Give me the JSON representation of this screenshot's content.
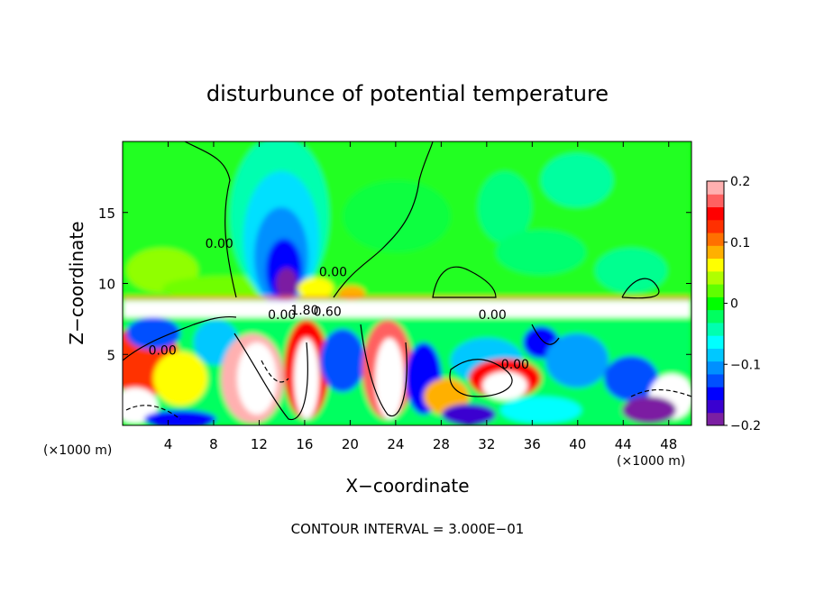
{
  "chart_data": {
    "type": "heatmap",
    "title": "disturbunce of potential temperature",
    "xlabel": "X−coordinate",
    "ylabel": "Z−coordinate",
    "x_unit_label": "(×1000 m)",
    "x_unit_label_right": "(×1000 m)",
    "footer": "CONTOUR INTERVAL = 3.000E−01",
    "xlim": [
      0,
      50
    ],
    "ylim": [
      0,
      20
    ],
    "x_ticks": [
      4,
      8,
      12,
      16,
      20,
      24,
      28,
      32,
      36,
      40,
      44,
      48
    ],
    "y_ticks": [
      5,
      10,
      15
    ],
    "colorbar": {
      "min": -0.2,
      "max": 0.2,
      "tick_values": [
        0.2,
        0.1,
        0,
        -0.1,
        -0.2
      ],
      "tick_labels": [
        "0.2",
        "0.1",
        "0",
        "−0.1",
        "−0.2"
      ],
      "colors": [
        "#7b1fa2",
        "#3a00d0",
        "#0000ff",
        "#0050ff",
        "#0090ff",
        "#00c8ff",
        "#00ffff",
        "#00ffb0",
        "#00ff60",
        "#00ff00",
        "#60ff00",
        "#b0ff00",
        "#ffff00",
        "#ffb000",
        "#ff7000",
        "#ff3000",
        "#ff0000",
        "#ff6060",
        "#ffb0b0"
      ]
    },
    "contour_labels": [
      {
        "text": "0.00",
        "x": 8.5,
        "y": 12.5
      },
      {
        "text": "0.00",
        "x": 18.5,
        "y": 10.5
      },
      {
        "text": "1.80",
        "x": 16.0,
        "y": 7.8
      },
      {
        "text": "0.60",
        "x": 18.0,
        "y": 7.7
      },
      {
        "text": "0.00",
        "x": 14.0,
        "y": 7.5
      },
      {
        "text": "0.00",
        "x": 32.5,
        "y": 7.5
      },
      {
        "text": "0.00",
        "x": 3.5,
        "y": 5.0
      },
      {
        "text": "0.00",
        "x": 34.5,
        "y": 4.0
      }
    ]
  }
}
